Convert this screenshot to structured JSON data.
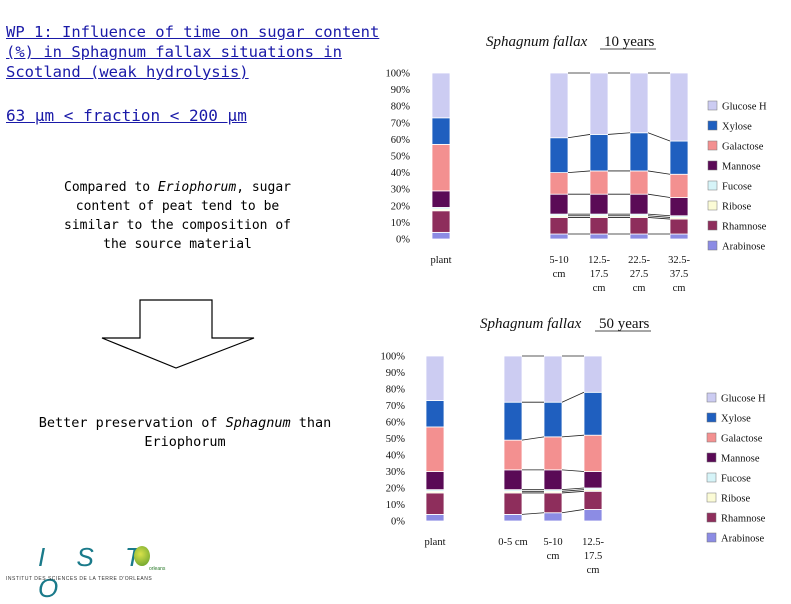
{
  "slide": {
    "title": "WP 1: Influence of time on sugar content (%) in  Sphagnum fallax situations in Scotland (weak hydrolysis)",
    "fraction": "63 µm < fraction < 200 µm",
    "note_pre": "Compared to ",
    "note_em": "Eriophorum",
    "note_post": ", sugar content of peat tend to be similar to the composition of the source material",
    "conclusion_pre": "Better preservation of ",
    "conclusion_em": "Sphagnum",
    "conclusion_post": " than Eriophorum"
  },
  "logo": {
    "text": "I S T O",
    "sub": "INSTITUT DES SCIENCES DE LA TERRE D'ORLEANS",
    "small": "orleans"
  },
  "colors": {
    "Glucose H": "#ccccf2",
    "Xylose": "#1f5fbf",
    "Galactose": "#f39090",
    "Mannose": "#5a0a56",
    "Fucose": "#d6f4f8",
    "Ribose": "#fbfbd6",
    "Rhamnose": "#8e2e5c",
    "Arabinose": "#8c8ce4"
  },
  "chart_data": [
    {
      "type": "bar",
      "stacked": true,
      "title_species": "Sphagnum fallax",
      "title_age": "10 years",
      "ylim": [
        0,
        100
      ],
      "yticks": [
        "0%",
        "10%",
        "20%",
        "30%",
        "40%",
        "50%",
        "60%",
        "70%",
        "80%",
        "90%",
        "100%"
      ],
      "categories": [
        "plant",
        "5-10 cm",
        "12.5-17.5 cm",
        "22.5-27.5 cm",
        "32.5-37.5 cm"
      ],
      "tick_labels": [
        [
          "plant"
        ],
        [
          "5-10",
          "cm"
        ],
        [
          "12.5-",
          "17.5",
          "cm"
        ],
        [
          "22.5-",
          "27.5",
          "cm"
        ],
        [
          "32.5-",
          "37.5",
          "cm"
        ]
      ],
      "legend": [
        "Glucose H",
        "Xylose",
        "Galactose",
        "Mannose",
        "Fucose",
        "Ribose",
        "Rhamnose",
        "Arabinose"
      ],
      "series": [
        {
          "name": "Arabinose",
          "values": [
            4,
            3,
            3,
            3,
            3
          ]
        },
        {
          "name": "Rhamnose",
          "values": [
            13,
            10,
            10,
            10,
            9
          ]
        },
        {
          "name": "Ribose",
          "values": [
            1,
            1,
            1,
            1,
            1
          ]
        },
        {
          "name": "Fucose",
          "values": [
            1,
            1,
            1,
            1,
            1
          ]
        },
        {
          "name": "Mannose",
          "values": [
            10,
            12,
            12,
            12,
            11
          ]
        },
        {
          "name": "Galactose",
          "values": [
            28,
            13,
            14,
            14,
            14
          ]
        },
        {
          "name": "Xylose",
          "values": [
            16,
            21,
            22,
            23,
            20
          ]
        },
        {
          "name": "Glucose H",
          "values": [
            27,
            39,
            37,
            36,
            41
          ]
        }
      ]
    },
    {
      "type": "bar",
      "stacked": true,
      "title_species": "Sphagnum fallax",
      "title_age": "50 years",
      "ylim": [
        0,
        100
      ],
      "yticks": [
        "0%",
        "10%",
        "20%",
        "30%",
        "40%",
        "50%",
        "60%",
        "70%",
        "80%",
        "90%",
        "100%"
      ],
      "categories": [
        "plant",
        "0-5 cm",
        "5-10 cm",
        "12.5-17.5 cm"
      ],
      "tick_labels": [
        [
          "plant"
        ],
        [
          "0-5 cm"
        ],
        [
          "5-10",
          "cm"
        ],
        [
          "12.5-",
          "17.5",
          "cm"
        ]
      ],
      "legend": [
        "Glucose H",
        "Xylose",
        "Galactose",
        "Mannose",
        "Fucose",
        "Ribose",
        "Rhamnose",
        "Arabinose"
      ],
      "series": [
        {
          "name": "Arabinose",
          "values": [
            4,
            4,
            5,
            7
          ]
        },
        {
          "name": "Rhamnose",
          "values": [
            13,
            13,
            12,
            11
          ]
        },
        {
          "name": "Ribose",
          "values": [
            1,
            1,
            1,
            1
          ]
        },
        {
          "name": "Fucose",
          "values": [
            1,
            1,
            1,
            1
          ]
        },
        {
          "name": "Mannose",
          "values": [
            11,
            12,
            12,
            10
          ]
        },
        {
          "name": "Galactose",
          "values": [
            27,
            18,
            20,
            22
          ]
        },
        {
          "name": "Xylose",
          "values": [
            16,
            23,
            21,
            26
          ]
        },
        {
          "name": "Glucose H",
          "values": [
            27,
            28,
            28,
            22
          ]
        }
      ]
    }
  ]
}
